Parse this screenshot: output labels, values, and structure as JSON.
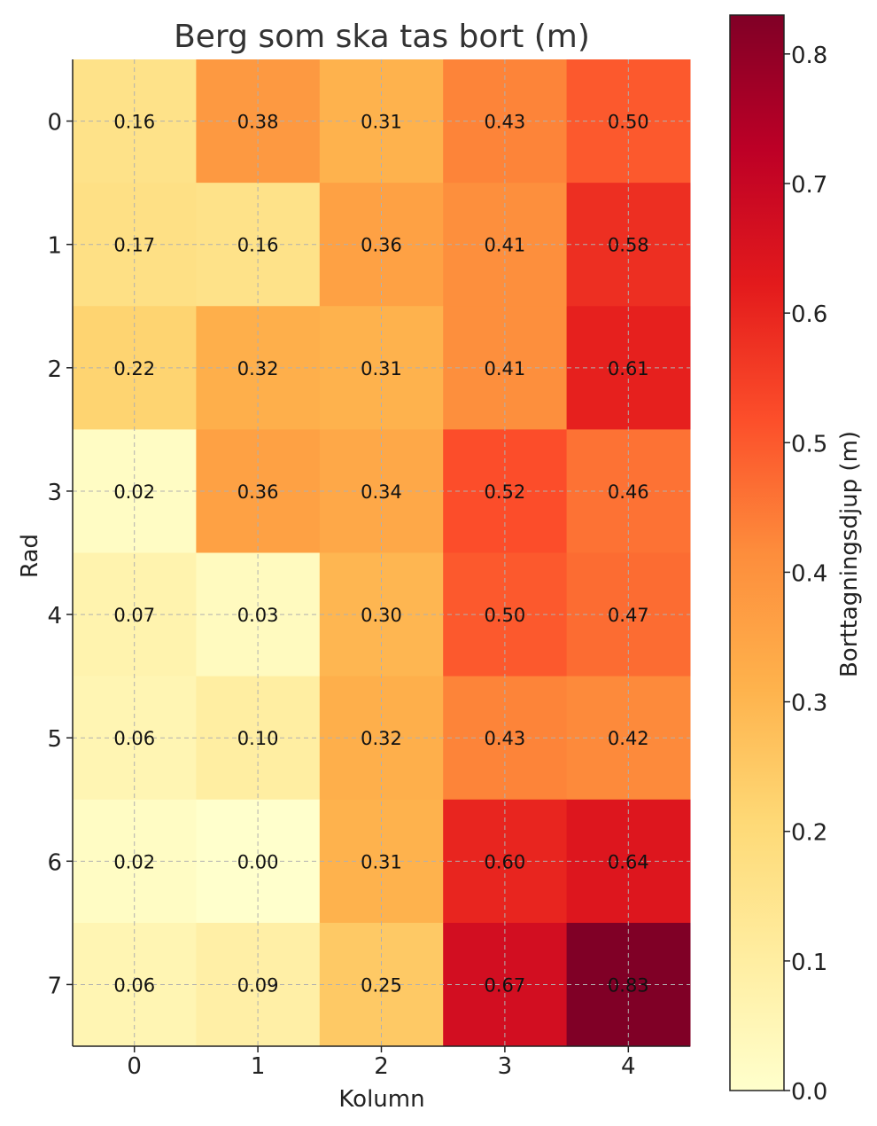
{
  "chart_data": {
    "type": "heatmap",
    "title": "Berg som ska tas bort (m)",
    "xlabel": "Kolumn",
    "ylabel": "Rad",
    "x_ticks": [
      "0",
      "1",
      "2",
      "3",
      "4"
    ],
    "y_ticks": [
      "0",
      "1",
      "2",
      "3",
      "4",
      "5",
      "6",
      "7"
    ],
    "grid": true,
    "colormap": "YlOrRd",
    "values": [
      [
        0.16,
        0.38,
        0.31,
        0.43,
        0.5
      ],
      [
        0.17,
        0.16,
        0.36,
        0.41,
        0.58
      ],
      [
        0.22,
        0.32,
        0.31,
        0.41,
        0.61
      ],
      [
        0.02,
        0.36,
        0.34,
        0.52,
        0.46
      ],
      [
        0.07,
        0.03,
        0.3,
        0.5,
        0.47
      ],
      [
        0.06,
        0.1,
        0.32,
        0.43,
        0.42
      ],
      [
        0.02,
        0.0,
        0.31,
        0.6,
        0.64
      ],
      [
        0.06,
        0.09,
        0.25,
        0.67,
        0.83
      ]
    ],
    "value_labels": [
      [
        "0.16",
        "0.38",
        "0.31",
        "0.43",
        "0.50"
      ],
      [
        "0.17",
        "0.16",
        "0.36",
        "0.41",
        "0.58"
      ],
      [
        "0.22",
        "0.32",
        "0.31",
        "0.41",
        "0.61"
      ],
      [
        "0.02",
        "0.36",
        "0.34",
        "0.52",
        "0.46"
      ],
      [
        "0.07",
        "0.03",
        "0.30",
        "0.50",
        "0.47"
      ],
      [
        "0.06",
        "0.10",
        "0.32",
        "0.43",
        "0.42"
      ],
      [
        "0.02",
        "0.00",
        "0.31",
        "0.60",
        "0.64"
      ],
      [
        "0.06",
        "0.09",
        "0.25",
        "0.67",
        "0.83"
      ]
    ],
    "colorbar": {
      "label": "Borttagningsdjup (m)",
      "range": [
        0.0,
        0.83
      ],
      "ticks": [
        0.0,
        0.1,
        0.2,
        0.3,
        0.4,
        0.5,
        0.6,
        0.7,
        0.8
      ],
      "tick_labels": [
        "0.0",
        "0.1",
        "0.2",
        "0.3",
        "0.4",
        "0.5",
        "0.6",
        "0.7",
        "0.8"
      ]
    }
  }
}
